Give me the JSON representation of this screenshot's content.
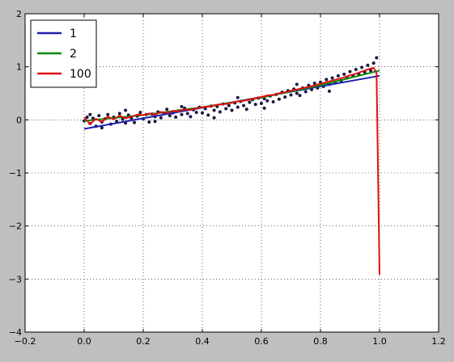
{
  "chart_data": {
    "type": "line",
    "title": "",
    "xlabel": "",
    "ylabel": "",
    "xlim": [
      -0.2,
      1.2
    ],
    "ylim": [
      -4,
      2
    ],
    "xticks": [
      -0.2,
      0.0,
      0.2,
      0.4,
      0.6,
      0.8,
      1.0,
      1.2
    ],
    "yticks": [
      -4,
      -3,
      -2,
      -1,
      0,
      1,
      2
    ],
    "xtick_labels": [
      "−0.2",
      "0.0",
      "0.2",
      "0.4",
      "0.6",
      "0.8",
      "1.0",
      "1.2"
    ],
    "ytick_labels": [
      "−4",
      "−3",
      "−2",
      "−1",
      "0",
      "1",
      "2"
    ],
    "grid": true,
    "legend_position": "top-left",
    "scatter": {
      "color": "#1a1a40",
      "points": [
        [
          0.0,
          -0.02
        ],
        [
          0.01,
          0.05
        ],
        [
          0.02,
          -0.07
        ],
        [
          0.03,
          0.03
        ],
        [
          0.04,
          -0.12
        ],
        [
          0.05,
          0.08
        ],
        [
          0.06,
          -0.04
        ],
        [
          0.07,
          0.02
        ],
        [
          0.08,
          0.1
        ],
        [
          0.09,
          -0.08
        ],
        [
          0.1,
          0.05
        ],
        [
          0.11,
          -0.03
        ],
        [
          0.12,
          0.12
        ],
        [
          0.13,
          0.01
        ],
        [
          0.14,
          -0.06
        ],
        [
          0.15,
          0.09
        ],
        [
          0.16,
          0.03
        ],
        [
          0.17,
          -0.05
        ],
        [
          0.18,
          0.07
        ],
        [
          0.19,
          0.14
        ],
        [
          0.2,
          0.02
        ],
        [
          0.21,
          0.1
        ],
        [
          0.22,
          -0.04
        ],
        [
          0.23,
          0.11
        ],
        [
          0.24,
          0.06
        ],
        [
          0.25,
          0.15
        ],
        [
          0.26,
          0.04
        ],
        [
          0.27,
          0.12
        ],
        [
          0.28,
          0.2
        ],
        [
          0.29,
          0.08
        ],
        [
          0.3,
          0.13
        ],
        [
          0.31,
          0.05
        ],
        [
          0.32,
          0.17
        ],
        [
          0.33,
          0.1
        ],
        [
          0.34,
          0.22
        ],
        [
          0.35,
          0.12
        ],
        [
          0.36,
          0.06
        ],
        [
          0.37,
          0.19
        ],
        [
          0.38,
          0.14
        ],
        [
          0.39,
          0.24
        ],
        [
          0.4,
          0.13
        ],
        [
          0.41,
          0.21
        ],
        [
          0.42,
          0.09
        ],
        [
          0.43,
          0.26
        ],
        [
          0.44,
          0.18
        ],
        [
          0.45,
          0.25
        ],
        [
          0.46,
          0.15
        ],
        [
          0.47,
          0.3
        ],
        [
          0.48,
          0.21
        ],
        [
          0.49,
          0.27
        ],
        [
          0.5,
          0.18
        ],
        [
          0.51,
          0.32
        ],
        [
          0.52,
          0.24
        ],
        [
          0.53,
          0.35
        ],
        [
          0.54,
          0.27
        ],
        [
          0.55,
          0.2
        ],
        [
          0.56,
          0.33
        ],
        [
          0.57,
          0.38
        ],
        [
          0.58,
          0.29
        ],
        [
          0.59,
          0.41
        ],
        [
          0.6,
          0.31
        ],
        [
          0.61,
          0.4
        ],
        [
          0.62,
          0.36
        ],
        [
          0.63,
          0.45
        ],
        [
          0.64,
          0.34
        ],
        [
          0.65,
          0.48
        ],
        [
          0.66,
          0.39
        ],
        [
          0.67,
          0.52
        ],
        [
          0.68,
          0.43
        ],
        [
          0.69,
          0.55
        ],
        [
          0.7,
          0.47
        ],
        [
          0.71,
          0.58
        ],
        [
          0.72,
          0.5
        ],
        [
          0.73,
          0.46
        ],
        [
          0.74,
          0.6
        ],
        [
          0.75,
          0.53
        ],
        [
          0.76,
          0.65
        ],
        [
          0.77,
          0.57
        ],
        [
          0.78,
          0.69
        ],
        [
          0.79,
          0.6
        ],
        [
          0.8,
          0.71
        ],
        [
          0.81,
          0.63
        ],
        [
          0.82,
          0.76
        ],
        [
          0.83,
          0.67
        ],
        [
          0.84,
          0.79
        ],
        [
          0.85,
          0.71
        ],
        [
          0.86,
          0.83
        ],
        [
          0.87,
          0.74
        ],
        [
          0.88,
          0.86
        ],
        [
          0.89,
          0.79
        ],
        [
          0.9,
          0.91
        ],
        [
          0.91,
          0.83
        ],
        [
          0.92,
          0.95
        ],
        [
          0.93,
          0.86
        ],
        [
          0.94,
          0.99
        ],
        [
          0.95,
          0.9
        ],
        [
          0.96,
          1.03
        ],
        [
          0.97,
          0.93
        ],
        [
          0.98,
          1.07
        ],
        [
          0.99,
          1.17
        ],
        [
          0.02,
          0.1
        ],
        [
          0.06,
          -0.15
        ],
        [
          0.14,
          0.18
        ],
        [
          0.24,
          -0.03
        ],
        [
          0.33,
          0.25
        ],
        [
          0.44,
          0.04
        ],
        [
          0.52,
          0.42
        ],
        [
          0.61,
          0.22
        ],
        [
          0.72,
          0.67
        ],
        [
          0.83,
          0.54
        ]
      ]
    },
    "series": [
      {
        "name": "1",
        "color": "#1f1fb0",
        "x": [
          0.0,
          1.0
        ],
        "y": [
          -0.17,
          0.83
        ]
      },
      {
        "name": "2",
        "color": "#0a8a0a",
        "x": [
          0.0,
          0.2,
          0.4,
          0.6,
          0.8,
          1.0
        ],
        "y": [
          -0.02,
          0.09,
          0.24,
          0.42,
          0.65,
          0.93
        ]
      },
      {
        "name": "100",
        "color": "#e01010",
        "x": [
          0.0,
          0.02,
          0.04,
          0.06,
          0.08,
          0.1,
          0.12,
          0.14,
          0.16,
          0.18,
          0.2,
          0.22,
          0.24,
          0.26,
          0.28,
          0.3,
          0.32,
          0.34,
          0.36,
          0.38,
          0.4,
          0.42,
          0.44,
          0.46,
          0.48,
          0.5,
          0.52,
          0.54,
          0.56,
          0.58,
          0.6,
          0.62,
          0.64,
          0.66,
          0.68,
          0.7,
          0.72,
          0.74,
          0.76,
          0.78,
          0.8,
          0.82,
          0.84,
          0.86,
          0.88,
          0.9,
          0.92,
          0.94,
          0.96,
          0.98,
          0.99,
          1.0
        ],
        "y": [
          0.05,
          -0.08,
          0.02,
          -0.04,
          0.06,
          0.01,
          0.08,
          0.03,
          0.06,
          0.1,
          0.09,
          0.12,
          0.1,
          0.15,
          0.13,
          0.17,
          0.16,
          0.2,
          0.19,
          0.22,
          0.24,
          0.25,
          0.27,
          0.29,
          0.3,
          0.32,
          0.35,
          0.36,
          0.38,
          0.41,
          0.43,
          0.46,
          0.47,
          0.5,
          0.52,
          0.55,
          0.57,
          0.6,
          0.62,
          0.65,
          0.68,
          0.71,
          0.74,
          0.77,
          0.8,
          0.84,
          0.87,
          0.91,
          0.95,
          0.98,
          0.88,
          -2.92
        ]
      }
    ]
  }
}
